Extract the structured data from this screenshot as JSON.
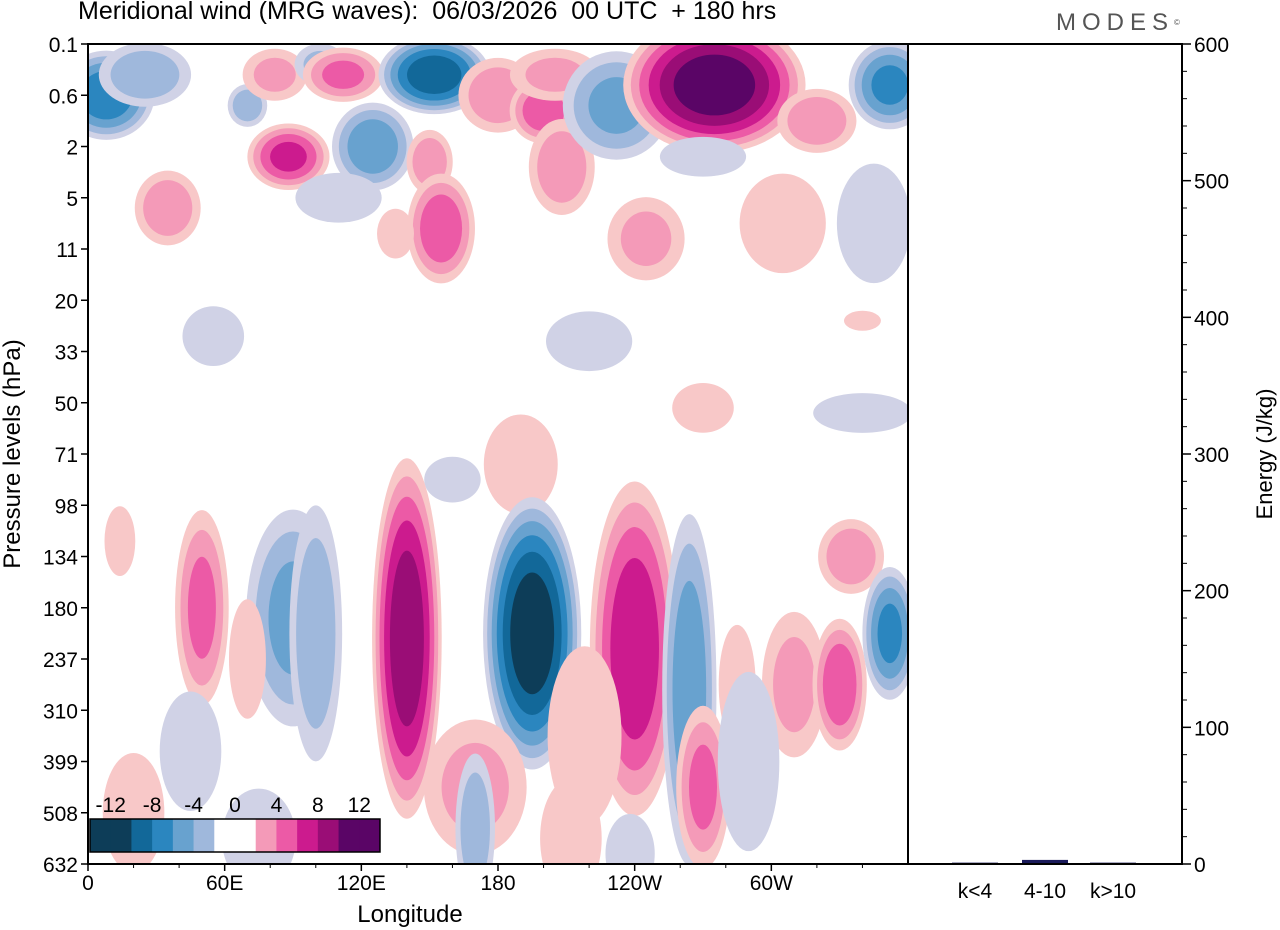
{
  "header": {
    "title": "Meridional wind (MRG waves):  06/03/2026  00 UTC  + 180 hrs",
    "brand": "MODES",
    "brand_mark": "©"
  },
  "colors": {
    "neg": [
      "#0d3d58",
      "#126899",
      "#2b86bf",
      "#68a2cf",
      "#9fb8dc",
      "#d0d2e6"
    ],
    "pos": [
      "#f8c8c8",
      "#f49ab8",
      "#ec5aa6",
      "#cc1b8e",
      "#9a0d76",
      "#5a0566"
    ],
    "zero": "#ffffff",
    "bar": "#1a1a5a"
  },
  "chart_data": [
    {
      "type": "heatmap",
      "title": "Meridional wind (MRG waves):  06/03/2026  00 UTC  + 180 hrs",
      "xlabel": "Longitude",
      "ylabel": "Pressure levels (hPa)",
      "x_ticks": [
        "0",
        "60E",
        "120E",
        "180",
        "120W",
        "60W"
      ],
      "x_tick_degrees": [
        0,
        60,
        120,
        180,
        240,
        300
      ],
      "x_range_degrees": [
        0,
        360
      ],
      "y_levels": [
        "0.1",
        "0.6",
        "2",
        "5",
        "11",
        "20",
        "33",
        "50",
        "71",
        "98",
        "134",
        "180",
        "237",
        "310",
        "399",
        "508",
        "632"
      ],
      "colorbar": {
        "labels": [
          "-12",
          "-8",
          "-4",
          "0",
          "4",
          "8",
          "12"
        ],
        "range": [
          -14,
          14
        ],
        "step": 2
      },
      "features": [
        {
          "lon": 8,
          "lev": 1.0,
          "value": -9,
          "dlon": 14,
          "dlev": 0.8
        },
        {
          "lon": 25,
          "lev": 0.6,
          "value": -5,
          "dlon": 14,
          "dlev": 0.6
        },
        {
          "lon": 35,
          "lev": 3.2,
          "value": 5,
          "dlon": 10,
          "dlev": 0.7
        },
        {
          "lon": 70,
          "lev": 1.2,
          "value": -5,
          "dlon": 6,
          "dlev": 0.4
        },
        {
          "lon": 82,
          "lev": 0.6,
          "value": 4,
          "dlon": 10,
          "dlev": 0.5
        },
        {
          "lon": 88,
          "lev": 2.2,
          "value": 8,
          "dlon": 12,
          "dlev": 0.6
        },
        {
          "lon": 102,
          "lev": 0.4,
          "value": -4,
          "dlon": 8,
          "dlev": 0.4
        },
        {
          "lon": 112,
          "lev": 0.6,
          "value": 6,
          "dlon": 12,
          "dlev": 0.5
        },
        {
          "lon": 125,
          "lev": 2.0,
          "value": -7,
          "dlon": 12,
          "dlev": 0.8
        },
        {
          "lon": 152,
          "lev": 0.6,
          "value": -11,
          "dlon": 16,
          "dlev": 0.7
        },
        {
          "lon": 180,
          "lev": 1.0,
          "value": 5,
          "dlon": 12,
          "dlev": 0.7
        },
        {
          "lon": 150,
          "lev": 2.3,
          "value": 5,
          "dlon": 7,
          "dlev": 0.6
        },
        {
          "lon": 155,
          "lev": 3.6,
          "value": 7,
          "dlon": 10,
          "dlev": 1.0
        },
        {
          "lon": 200,
          "lev": 1.3,
          "value": 7,
          "dlon": 10,
          "dlev": 0.6
        },
        {
          "lon": 205,
          "lev": 0.6,
          "value": 4,
          "dlon": 14,
          "dlev": 0.5
        },
        {
          "lon": 208,
          "lev": 2.4,
          "value": 5,
          "dlon": 10,
          "dlev": 0.9
        },
        {
          "lon": 232,
          "lev": 1.2,
          "value": -6,
          "dlon": 16,
          "dlev": 1.0
        },
        {
          "lon": 275,
          "lev": 0.8,
          "value": 13,
          "dlon": 26,
          "dlev": 1.2
        },
        {
          "lon": 320,
          "lev": 1.5,
          "value": 5,
          "dlon": 12,
          "dlev": 0.6
        },
        {
          "lon": 352,
          "lev": 0.8,
          "value": -8,
          "dlon": 12,
          "dlev": 0.8
        },
        {
          "lon": 270,
          "lev": 2.2,
          "value": -3,
          "dlon": 14,
          "dlev": 0.4
        },
        {
          "lon": 245,
          "lev": 3.8,
          "value": 4,
          "dlon": 12,
          "dlev": 0.8
        },
        {
          "lon": 305,
          "lev": 3.5,
          "value": 3,
          "dlon": 14,
          "dlev": 1.0
        },
        {
          "lon": 345,
          "lev": 3.5,
          "value": -3,
          "dlon": 12,
          "dlev": 1.2
        },
        {
          "lon": 110,
          "lev": 3.0,
          "value": -3,
          "dlon": 14,
          "dlev": 0.5
        },
        {
          "lon": 55,
          "lev": 5.7,
          "value": -3,
          "dlon": 10,
          "dlev": 0.6
        },
        {
          "lon": 220,
          "lev": 5.8,
          "value": -3,
          "dlon": 14,
          "dlev": 0.6
        },
        {
          "lon": 135,
          "lev": 3.7,
          "value": 3,
          "dlon": 6,
          "dlev": 0.5
        },
        {
          "lon": 340,
          "lev": 5.4,
          "value": 3,
          "dlon": 6,
          "dlev": 0.2
        },
        {
          "lon": 270,
          "lev": 7.1,
          "value": 3,
          "dlon": 10,
          "dlev": 0.5
        },
        {
          "lon": 190,
          "lev": 8.2,
          "value": 3,
          "dlon": 12,
          "dlev": 1.0
        },
        {
          "lon": 160,
          "lev": 8.5,
          "value": -2,
          "dlon": 10,
          "dlev": 0.5
        },
        {
          "lon": 340,
          "lev": 7.2,
          "value": -3,
          "dlon": 16,
          "dlev": 0.4
        },
        {
          "lon": 50,
          "lev": 11.0,
          "value": 6,
          "dlon": 8,
          "dlev": 1.8
        },
        {
          "lon": 90,
          "lev": 11.2,
          "value": -6,
          "dlon": 14,
          "dlev": 2.0
        },
        {
          "lon": 100,
          "lev": 11.5,
          "value": -5,
          "dlon": 8,
          "dlev": 2.4
        },
        {
          "lon": 140,
          "lev": 11.6,
          "value": 11,
          "dlon": 10,
          "dlev": 3.2
        },
        {
          "lon": 195,
          "lev": 11.5,
          "value": -13,
          "dlon": 14,
          "dlev": 2.4
        },
        {
          "lon": 240,
          "lev": 11.8,
          "value": 9,
          "dlon": 13,
          "dlev": 3.0
        },
        {
          "lon": 264,
          "lev": 12.6,
          "value": -7,
          "dlon": 8,
          "dlev": 3.2
        },
        {
          "lon": 310,
          "lev": 12.5,
          "value": 4,
          "dlon": 10,
          "dlev": 1.4
        },
        {
          "lon": 330,
          "lev": 12.5,
          "value": 7,
          "dlon": 8,
          "dlev": 1.2
        },
        {
          "lon": 335,
          "lev": 10.0,
          "value": 5,
          "dlon": 10,
          "dlev": 0.7
        },
        {
          "lon": 352,
          "lev": 11.5,
          "value": -8,
          "dlon": 8,
          "dlev": 1.2
        },
        {
          "lon": 70,
          "lev": 12.0,
          "value": 3,
          "dlon": 6,
          "dlev": 1.2
        },
        {
          "lon": 14,
          "lev": 9.7,
          "value": 3,
          "dlon": 5,
          "dlev": 0.7
        },
        {
          "lon": 270,
          "lev": 14.5,
          "value": 6,
          "dlon": 8,
          "dlev": 1.5
        },
        {
          "lon": 285,
          "lev": 12.5,
          "value": 3,
          "dlon": 6,
          "dlev": 1.2
        },
        {
          "lon": 170,
          "lev": 14.5,
          "value": 4,
          "dlon": 16,
          "dlev": 1.3
        },
        {
          "lon": 170,
          "lev": 15.3,
          "value": -5,
          "dlon": 6,
          "dlev": 1.4
        },
        {
          "lon": 218,
          "lev": 13.5,
          "value": 3,
          "dlon": 12,
          "dlev": 1.8
        },
        {
          "lon": 290,
          "lev": 14.0,
          "value": -3,
          "dlon": 10,
          "dlev": 1.8
        },
        {
          "lon": 20,
          "lev": 15.0,
          "value": 3,
          "dlon": 10,
          "dlev": 1.2
        },
        {
          "lon": 45,
          "lev": 13.8,
          "value": -3,
          "dlon": 10,
          "dlev": 1.2
        },
        {
          "lon": 75,
          "lev": 15.5,
          "value": -3,
          "dlon": 12,
          "dlev": 1.0
        },
        {
          "lon": 212,
          "lev": 15.5,
          "value": 3,
          "dlon": 10,
          "dlev": 1.2
        },
        {
          "lon": 238,
          "lev": 15.8,
          "value": -3,
          "dlon": 8,
          "dlev": 0.8
        }
      ]
    },
    {
      "type": "bar",
      "categories": [
        "k<4",
        "4-10",
        "k>10"
      ],
      "values": [
        1,
        3,
        1
      ],
      "ylabel": "Energy (J/kg)",
      "ylim": [
        0,
        600
      ],
      "y_ticks": [
        "0",
        "100",
        "200",
        "300",
        "400",
        "500",
        "600"
      ],
      "y_tick_values": [
        0,
        100,
        200,
        300,
        400,
        500,
        600
      ]
    }
  ]
}
